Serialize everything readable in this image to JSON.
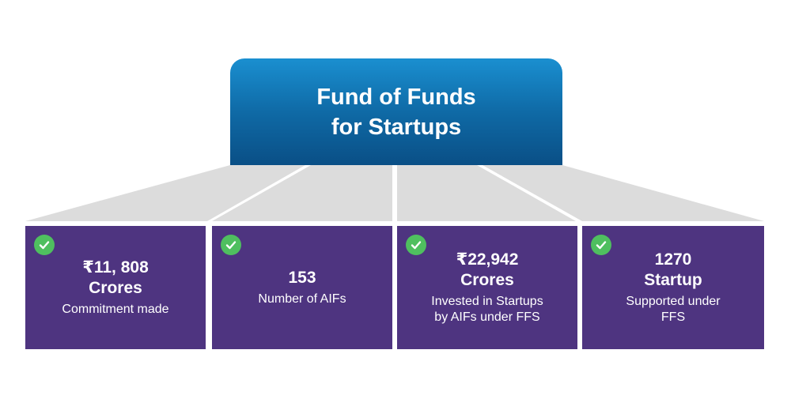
{
  "header": {
    "title_line1": "Fund of Funds",
    "title_line2": "for Startups"
  },
  "colors": {
    "card_bg": "#4e3480",
    "header_top": "#1a8fd0",
    "header_bottom": "#0a4f86",
    "check": "#4fbf5f",
    "connector": "#dcdcdc"
  },
  "cards": [
    {
      "value_line1": "₹11, 808",
      "value_line2": "Crores",
      "desc_line1": "Commitment made",
      "desc_line2": "",
      "icon": "check-circle-icon"
    },
    {
      "value_line1": "153",
      "value_line2": "",
      "desc_line1": "Number of AIFs",
      "desc_line2": "",
      "icon": "check-circle-icon"
    },
    {
      "value_line1": "₹22,942",
      "value_line2": "Crores",
      "desc_line1": "Invested in Startups",
      "desc_line2": "by AIFs under FFS",
      "icon": "check-circle-icon"
    },
    {
      "value_line1": "1270",
      "value_line2": "Startup",
      "desc_line1": "Supported under",
      "desc_line2": "FFS",
      "icon": "check-circle-icon"
    }
  ]
}
